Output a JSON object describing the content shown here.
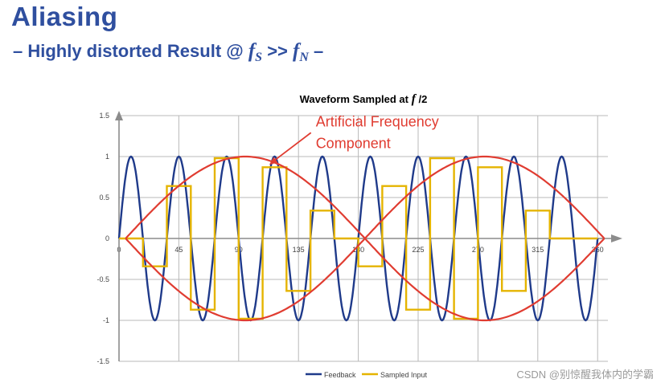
{
  "slide": {
    "title": "Aliasing",
    "subtitle_prefix": "– Highly distorted Result @",
    "subtitle_f": "f",
    "subtitle_s_sub": "S",
    "subtitle_mid": ">>",
    "subtitle_n_sub": "N",
    "subtitle_suffix": "–"
  },
  "watermark": "CSDN @别惊醒我体内的学霸",
  "colors": {
    "title": "#2f4f9f",
    "feedback": "#1f3a8a",
    "sampled": "#e5b400",
    "envelope": "#e03c31",
    "annotation": "#e03c31",
    "grid": "#b9b9b9",
    "axis": "#8c8c8c"
  },
  "chart_data": {
    "type": "line",
    "title_prefix": "Waveform Sampled at ",
    "title_f": "f",
    "title_suffix": " /2",
    "x_ticks": [
      "0",
      "45",
      "90",
      "135",
      "180",
      "225",
      "270",
      "315",
      "360"
    ],
    "y_ticks": [
      "1.5",
      "1",
      "0.5",
      "0",
      "-0.5",
      "-1",
      "-1.5"
    ],
    "xlim": [
      0,
      375
    ],
    "ylim": [
      -1.5,
      1.5
    ],
    "grid": true,
    "legend_position": "bottom",
    "series": [
      {
        "name": "Feedback",
        "kind": "sine",
        "frequency_per_360": 10,
        "amplitude": 1,
        "x_range": [
          0,
          360
        ]
      },
      {
        "name": "Sampled Input",
        "kind": "step",
        "x": [
          0,
          18,
          36,
          54,
          72,
          90,
          108,
          126,
          144,
          162,
          180,
          198,
          216,
          234,
          252,
          270,
          288,
          306,
          324,
          342,
          360
        ],
        "values": [
          0,
          -0.34,
          0.64,
          -0.87,
          0.98,
          -0.98,
          0.87,
          -0.64,
          0.34,
          0,
          -0.34,
          0.64,
          -0.87,
          0.98,
          -0.98,
          0.87,
          -0.64,
          0.34,
          0,
          0,
          0
        ]
      }
    ],
    "envelope": {
      "x_range": [
        5,
        365
      ],
      "amplitude": 1
    },
    "annotation": {
      "line1": "Artificial Frequency",
      "line2": "Component",
      "text_x": 148,
      "text_y": 1.37,
      "arrow_to_x": 113,
      "arrow_to_y": 0.9
    }
  }
}
